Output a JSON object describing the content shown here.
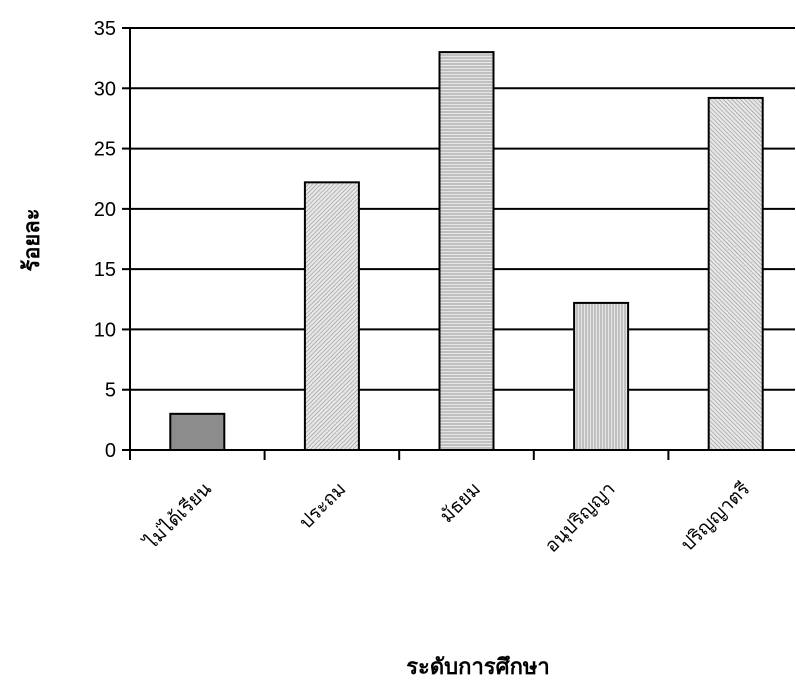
{
  "chart_data": {
    "type": "bar",
    "title": "",
    "xlabel": "ระดับการศึกษา",
    "ylabel": "ร้อยละ",
    "categories": [
      "ไม่ได้เรียน",
      "ประถม",
      "มัธยม",
      "อนุปริญญา",
      "ปริญญาตรี"
    ],
    "values": [
      3,
      22.2,
      33,
      12.2,
      29.2
    ],
    "ylim": [
      0,
      35
    ],
    "yticks": [
      0,
      5,
      10,
      15,
      20,
      25,
      30,
      35
    ],
    "grid": true,
    "legend": "none",
    "colors": {
      "bar_dark": "#8c8c8c",
      "bar_light": "#d8d8d8",
      "outline": "#000000",
      "grid": "#000000",
      "background": "#ffffff"
    }
  }
}
